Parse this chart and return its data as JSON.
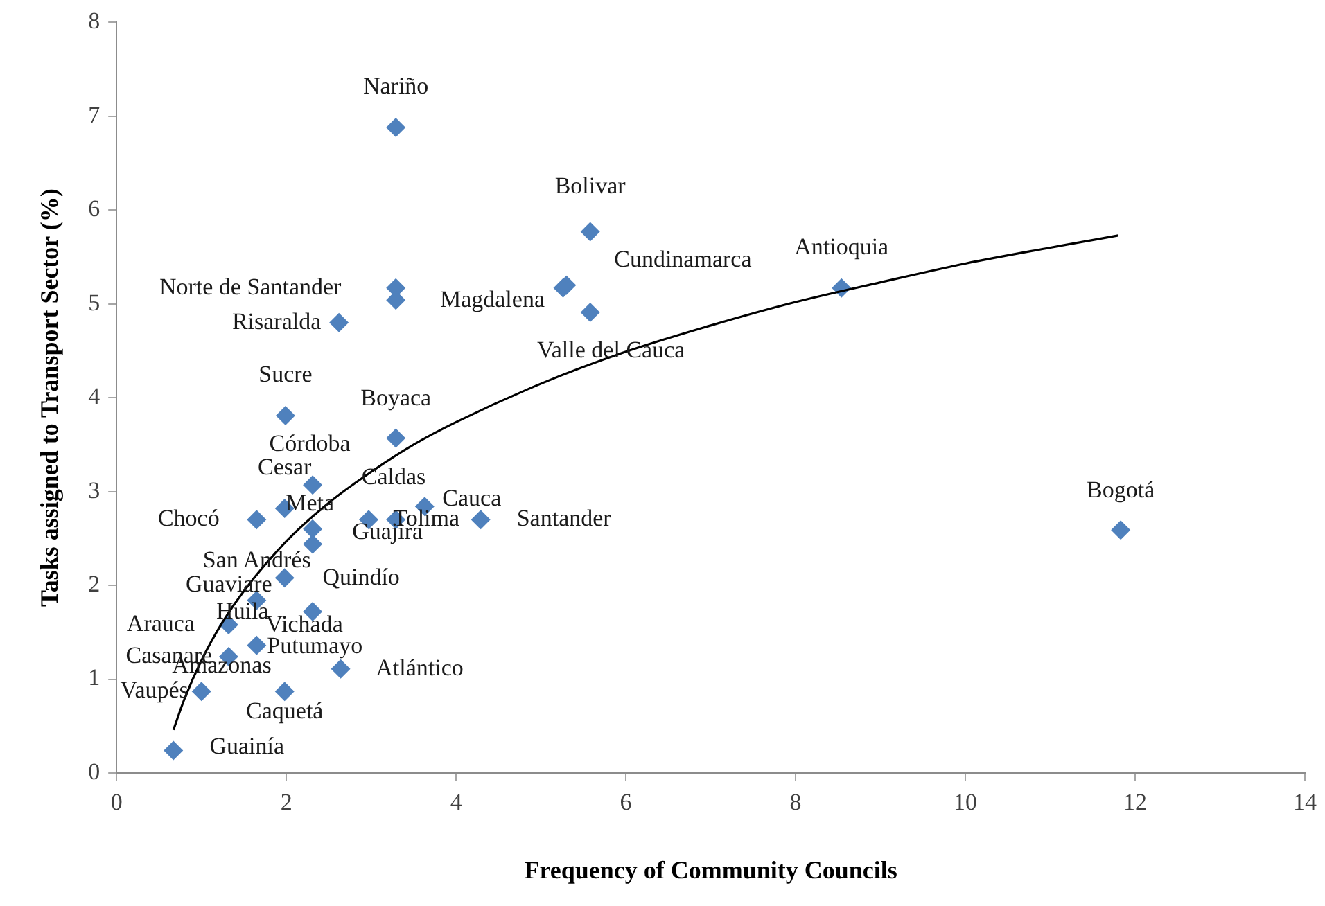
{
  "chart_data": {
    "type": "scatter",
    "xlabel": "Frequency of Community Councils",
    "ylabel": "Tasks assigned to Transport Sector (%)",
    "xlim": [
      0,
      14
    ],
    "xticks": [
      0,
      2,
      4,
      6,
      8,
      10,
      12,
      14
    ],
    "ylim": [
      0,
      8
    ],
    "yticks": [
      0,
      1,
      2,
      3,
      4,
      5,
      6,
      7,
      8
    ],
    "grid": false,
    "legend": false,
    "marker": "diamond",
    "series": [
      {
        "type": "scatter",
        "color": "#4f81bd",
        "x": [
          3.29,
          5.58,
          8.54,
          3.29,
          3.29,
          2.62,
          5.26,
          5.3,
          5.58,
          1.99,
          3.29,
          2.31,
          1.98,
          1.65,
          2.31,
          2.31,
          2.97,
          3.29,
          3.63,
          4.29,
          11.83,
          1.98,
          1.65,
          2.31,
          1.32,
          1.65,
          1.32,
          2.64,
          1.0,
          1.98,
          0.67
        ],
        "values": [
          6.88,
          5.77,
          5.17,
          5.17,
          5.04,
          4.8,
          5.17,
          5.2,
          4.91,
          3.81,
          3.57,
          3.07,
          2.82,
          2.7,
          2.6,
          2.44,
          2.7,
          2.7,
          2.84,
          2.7,
          2.59,
          2.08,
          1.84,
          1.72,
          1.58,
          1.36,
          1.24,
          1.11,
          0.87,
          0.87,
          0.24
        ]
      },
      {
        "type": "line",
        "color": "#000000",
        "marker": "none",
        "x": [
          0.67,
          0.8,
          1,
          1.25,
          1.5,
          2,
          2.5,
          3,
          3.5,
          4,
          5,
          6,
          7,
          8,
          9,
          10,
          11,
          11.8
        ],
        "values": [
          0.46,
          0.79,
          1.2,
          1.61,
          1.94,
          2.47,
          2.88,
          3.21,
          3.5,
          3.74,
          4.15,
          4.49,
          4.77,
          5.02,
          5.23,
          5.43,
          5.6,
          5.73
        ]
      }
    ],
    "annotations": [
      {
        "text": "Nariño",
        "x": 3.29,
        "y": 6.88
      },
      {
        "text": "Bolivar",
        "x": 5.58,
        "y": 5.77
      },
      {
        "text": "Antioquia",
        "x": 8.54,
        "y": 5.17
      },
      {
        "text": "Norte de Santander",
        "x": 3.29,
        "y": 5.17
      },
      {
        "text": "Magdalena",
        "x": 5.26,
        "y": 5.17
      },
      {
        "text": "Cundinamarca",
        "x": 5.3,
        "y": 5.2
      },
      {
        "text": "Valle del Cauca",
        "x": 5.58,
        "y": 4.91
      },
      {
        "text": "Risaralda",
        "x": 2.62,
        "y": 4.8
      },
      {
        "text": "Sucre",
        "x": 1.99,
        "y": 3.81
      },
      {
        "text": "Boyaca",
        "x": 3.29,
        "y": 3.57
      },
      {
        "text": "Córdoba",
        "x": 2.31,
        "y": 3.07
      },
      {
        "text": "Cesar",
        "x": 1.98,
        "y": 2.82
      },
      {
        "text": "Caldas",
        "x": 2.97,
        "y": 2.7
      },
      {
        "text": "Cauca",
        "x": 3.63,
        "y": 2.84
      },
      {
        "text": "Chocó",
        "x": 1.65,
        "y": 2.7
      },
      {
        "text": "Meta",
        "x": 2.31,
        "y": 2.6
      },
      {
        "text": "Tolima",
        "x": 3.29,
        "y": 2.7
      },
      {
        "text": "Santander",
        "x": 4.29,
        "y": 2.7
      },
      {
        "text": "Guajira",
        "x": 2.31,
        "y": 2.44
      },
      {
        "text": "Bogotá",
        "x": 11.83,
        "y": 2.59
      },
      {
        "text": "San Andrés",
        "x": 1.98,
        "y": 2.08
      },
      {
        "text": "Quindío",
        "x": 2.31,
        "y": 1.72
      },
      {
        "text": "Guaviare",
        "x": 1.65,
        "y": 1.84
      },
      {
        "text": "Huila",
        "x": 1.32,
        "y": 1.58
      },
      {
        "text": "Arauca",
        "x": 1.32,
        "y": 1.58
      },
      {
        "text": "Vichada",
        "x": 2.31,
        "y": 1.72
      },
      {
        "text": "Putumayo",
        "x": 1.65,
        "y": 1.36
      },
      {
        "text": "Casanare",
        "x": 1.32,
        "y": 1.24
      },
      {
        "text": "Amazonas",
        "x": 1.32,
        "y": 1.24
      },
      {
        "text": "Atlántico",
        "x": 2.64,
        "y": 1.11
      },
      {
        "text": "Vaupés",
        "x": 1.0,
        "y": 0.87
      },
      {
        "text": "Caquetá",
        "x": 1.98,
        "y": 0.87
      },
      {
        "text": "Guainía",
        "x": 0.67,
        "y": 0.24
      }
    ]
  }
}
